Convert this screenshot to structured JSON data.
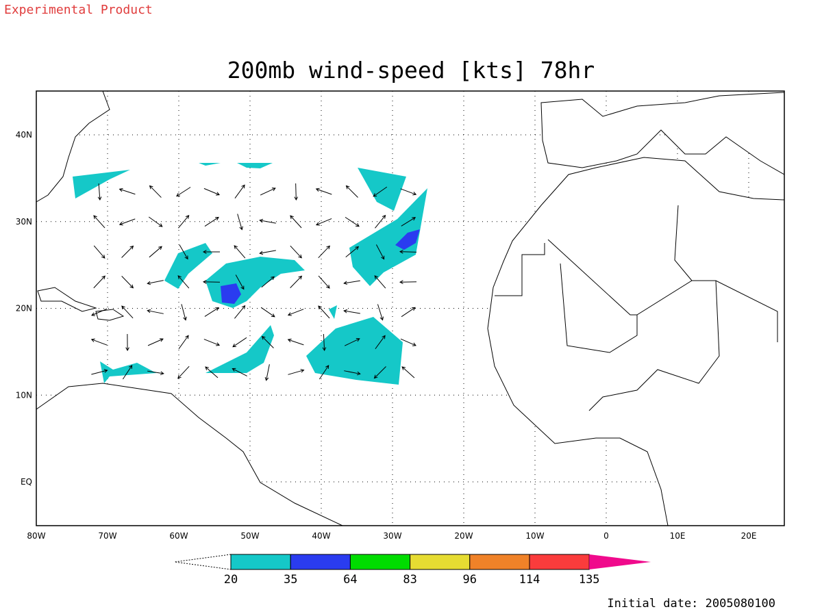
{
  "header": {
    "note": "Experimental Product"
  },
  "map": {
    "title": "200mb wind-speed [kts] 78hr",
    "lon_labels": [
      "80W",
      "70W",
      "60W",
      "50W",
      "40W",
      "30W",
      "20W",
      "10W",
      "0",
      "10E",
      "20E"
    ],
    "lat_labels": [
      "40N",
      "30N",
      "20N",
      "10N",
      "EQ"
    ]
  },
  "colorbar": {
    "levels": [
      20,
      35,
      64,
      83,
      96,
      114,
      135
    ],
    "colors": [
      "#15c8c8",
      "#2a3cf0",
      "#00dc00",
      "#e6dc32",
      "#f08228",
      "#fa3c3c",
      "#f00a8c"
    ]
  },
  "footer": {
    "initial_date": "Initial date: 2005080100"
  }
}
